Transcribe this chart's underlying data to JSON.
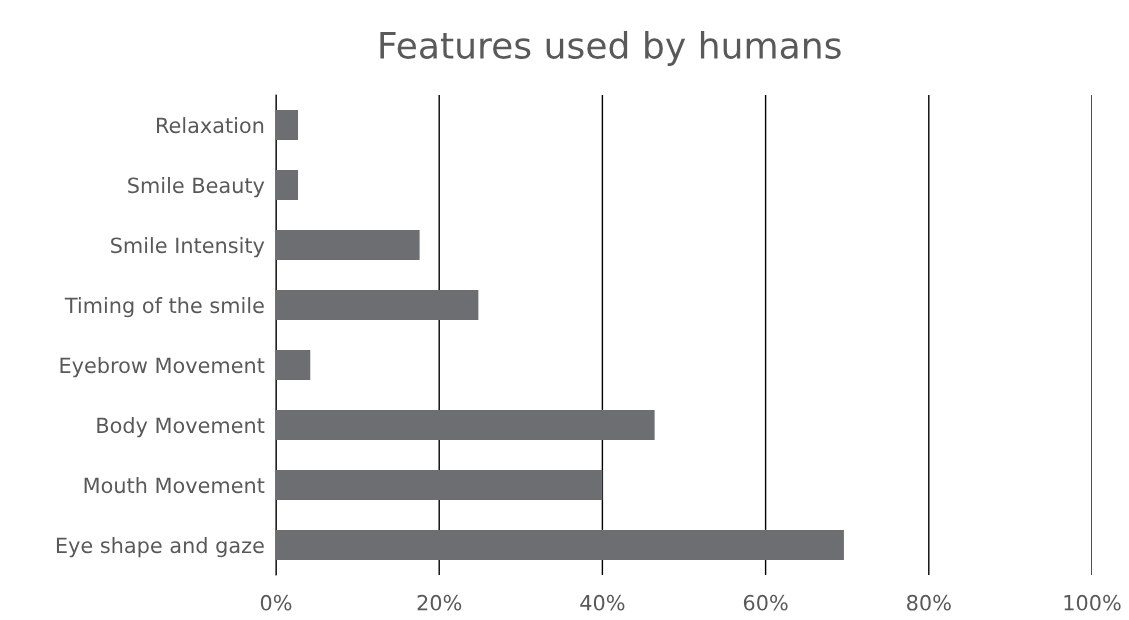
{
  "chart_data": {
    "type": "bar",
    "orientation": "horizontal",
    "title": "Features used by humans",
    "categories": [
      "Relaxation",
      "Smile Beauty",
      "Smile Intensity",
      "Timing of the smile",
      "Eyebrow Movement",
      "Body Movement",
      "Mouth Movement",
      "Eye shape and gaze"
    ],
    "values": [
      2.7,
      2.7,
      17.6,
      24.8,
      4.2,
      46.4,
      40,
      69.6
    ],
    "color": "#6d6e71",
    "xlim": [
      0,
      100
    ],
    "xticks": [
      {
        "value": 0,
        "label": "0%"
      },
      {
        "value": 20,
        "label": "20%"
      },
      {
        "value": 40,
        "label": "40%"
      },
      {
        "value": 60,
        "label": "60%"
      },
      {
        "value": 80,
        "label": "80%"
      },
      {
        "value": 100,
        "label": "100%"
      }
    ],
    "grid": "x",
    "legend": false
  }
}
